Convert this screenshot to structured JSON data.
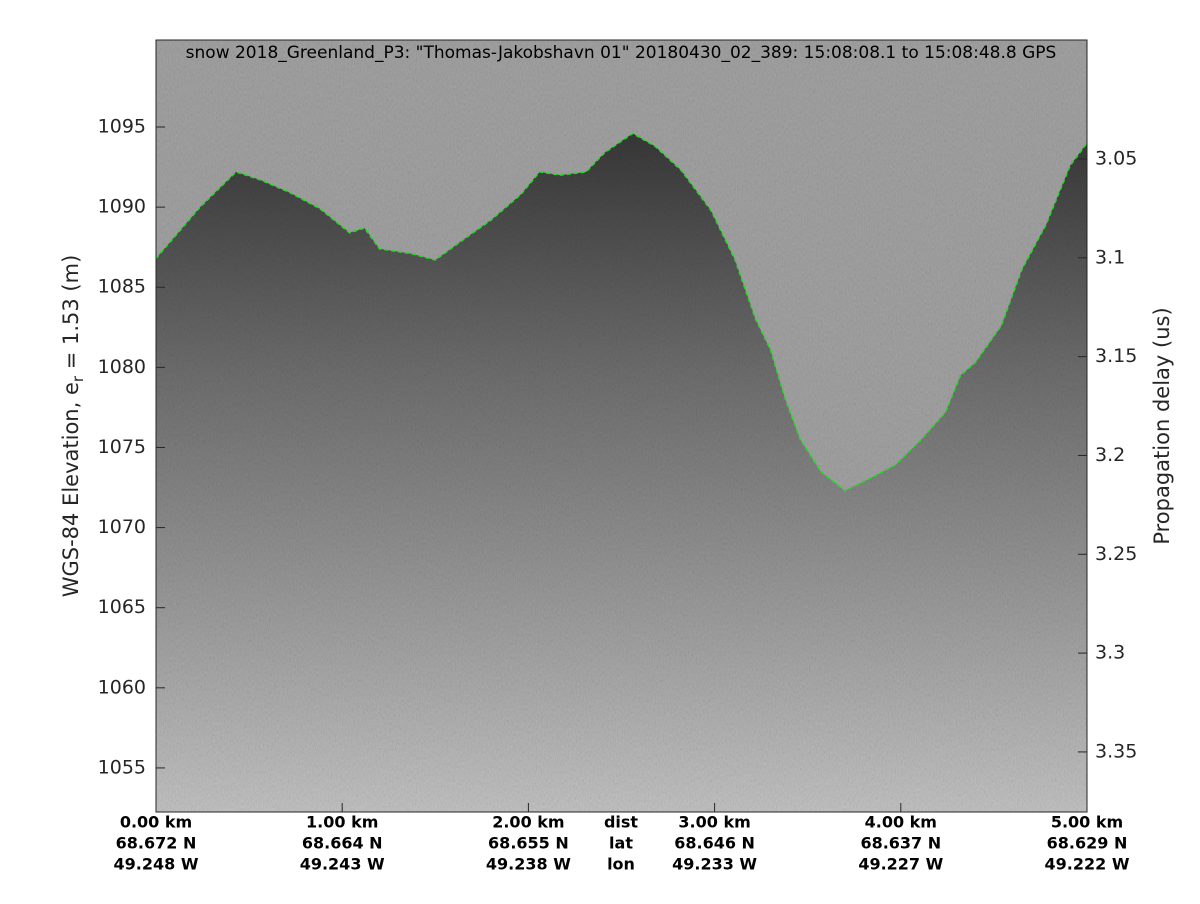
{
  "chart_data": {
    "type": "echogram",
    "title": "snow 2018_Greenland_P3: \"Thomas-Jakobshavn 01\"  20180430_02_389: 15:08:08.1 to 15:08:48.8 GPS",
    "ylabel": {
      "text": "WGS-84 Elevation, e",
      "sub": "r",
      "rest": " = 1.53 (m)"
    },
    "y2label": "Propagation delay (us)",
    "xlim": [
      0,
      5
    ],
    "xticks": [
      {
        "value": 0,
        "label": "0.00 km"
      },
      {
        "value": 1,
        "label": "1.00 km"
      },
      {
        "value": 2,
        "label": "2.00 km"
      },
      {
        "value": 3,
        "label": "3.00 km"
      },
      {
        "value": 4,
        "label": "4.00 km"
      },
      {
        "value": 5,
        "label": "5.00 km"
      }
    ],
    "lat_labels": [
      "68.672 N",
      "68.664 N",
      "68.655 N",
      "68.646 N",
      "68.637 N",
      "68.629 N"
    ],
    "lon_labels": [
      "49.248 W",
      "49.243 W",
      "49.238 W",
      "49.233 W",
      "49.227 W",
      "49.222 W"
    ],
    "row_labels": [
      "dist",
      "lat",
      "lon"
    ],
    "ylim": [
      1052.25,
      1100.43
    ],
    "yticks": [
      1055,
      1060,
      1065,
      1070,
      1075,
      1080,
      1085,
      1090,
      1095
    ],
    "y2lim": [
      3.3804,
      2.9898
    ],
    "y2ticks": [
      3.05,
      3.1,
      3.15,
      3.2,
      3.25,
      3.3,
      3.35
    ],
    "series": [
      {
        "name": "Surface",
        "color": "#22dd22",
        "x": [
          0,
          0.237,
          0.43,
          0.56,
          0.72,
          0.88,
          1.04,
          1.12,
          1.2,
          1.37,
          1.5,
          1.63,
          1.8,
          1.96,
          2.06,
          2.17,
          2.31,
          2.41,
          2.56,
          2.68,
          2.82,
          2.98,
          3.11,
          3.22,
          3.3,
          3.38,
          3.46,
          3.57,
          3.7,
          3.84,
          3.97,
          4.11,
          4.24,
          4.32,
          4.4,
          4.54,
          4.65,
          4.78,
          4.91,
          5.0
        ],
        "values": [
          1086.8,
          1090.0,
          1092.2,
          1091.7,
          1090.9,
          1089.9,
          1088.4,
          1088.7,
          1087.4,
          1087.1,
          1086.7,
          1087.8,
          1089.2,
          1090.8,
          1092.2,
          1092.0,
          1092.2,
          1093.4,
          1094.6,
          1093.8,
          1092.3,
          1089.8,
          1086.7,
          1083.0,
          1081.1,
          1078.0,
          1075.5,
          1073.5,
          1072.3,
          1073.1,
          1073.9,
          1075.5,
          1077.2,
          1079.5,
          1080.3,
          1082.6,
          1086.1,
          1088.9,
          1092.6,
          1094.0
        ]
      }
    ]
  }
}
